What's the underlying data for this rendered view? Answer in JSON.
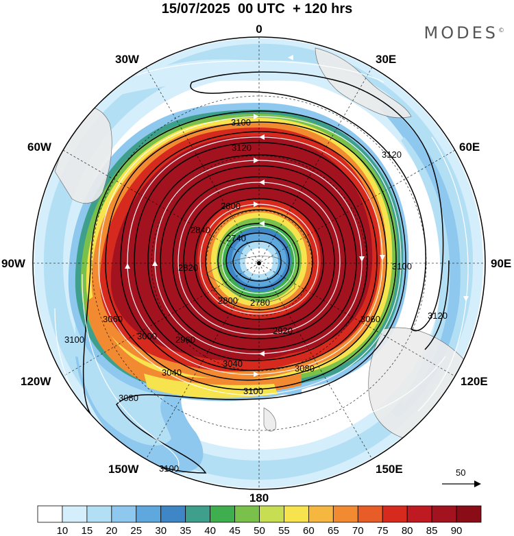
{
  "title": "15/07/2025  00 UTC  + 120 hrs",
  "brand": "MODES",
  "brand_mark": "©",
  "longitude_labels": [
    "0",
    "30E",
    "60E",
    "90E",
    "120E",
    "150E",
    "180",
    "150W",
    "120W",
    "90W",
    "60W",
    "30W"
  ],
  "contour_labels": [
    "2740",
    "2780",
    "2800",
    "2820",
    "2840",
    "2880",
    "2920",
    "2960",
    "3000",
    "3040",
    "3060",
    "3080",
    "3100",
    "3120"
  ],
  "wind_reference": {
    "value": "50"
  },
  "colorbar": {
    "labels": [
      "10",
      "15",
      "20",
      "25",
      "30",
      "35",
      "40",
      "45",
      "50",
      "55",
      "60",
      "65",
      "70",
      "75",
      "80",
      "85",
      "90"
    ],
    "colors": [
      "#ffffff",
      "#d4eefb",
      "#b3dff5",
      "#8ec8ee",
      "#5fa8de",
      "#3f86c6",
      "#3ea08c",
      "#3fae4f",
      "#79c14a",
      "#c7dd52",
      "#f7e34e",
      "#f6b741",
      "#f28a32",
      "#e85c27",
      "#d72a1f",
      "#bf1a22",
      "#a3121f",
      "#8a0c16"
    ]
  }
}
